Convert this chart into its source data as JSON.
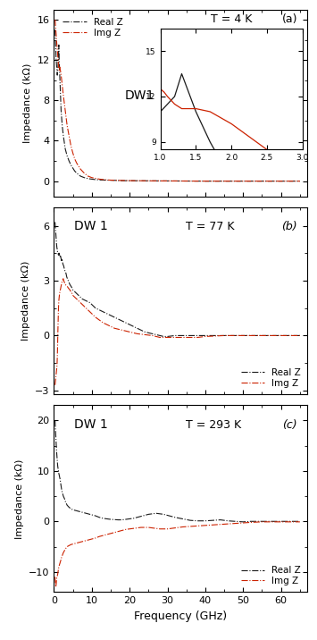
{
  "panel_a": {
    "title": "T = 4 K",
    "label": "DW1",
    "panel_letter": "(a)",
    "ylim": [
      -1.5,
      17
    ],
    "yticks": [
      0,
      4,
      8,
      12,
      16
    ],
    "xlim": [
      0,
      67
    ],
    "ylabel": "Impedance (kΩ)",
    "real_z_freq": [
      0.3,
      0.35,
      0.4,
      0.45,
      0.5,
      0.55,
      0.6,
      0.65,
      0.7,
      0.75,
      0.8,
      0.85,
      0.9,
      0.95,
      1.0,
      1.05,
      1.1,
      1.15,
      1.2,
      1.25,
      1.3,
      1.35,
      1.4,
      1.45,
      1.5,
      1.55,
      1.6,
      1.7,
      1.8,
      1.9,
      2.0,
      2.2,
      2.5,
      3.0,
      3.5,
      4.0,
      4.5,
      5.0,
      5.5,
      6.0,
      7.0,
      8.0,
      9.0,
      10.0,
      11.0,
      12.0,
      14.0,
      16.0,
      18.0,
      20.0,
      25.0,
      30.0,
      35.0,
      40.0,
      45.0,
      50.0,
      55.0,
      60.0,
      65.0
    ],
    "real_z_vals": [
      15.0,
      14.5,
      14.0,
      13.5,
      13.0,
      12.5,
      12.0,
      11.8,
      11.5,
      11.2,
      11.0,
      10.8,
      10.5,
      10.8,
      11.0,
      11.2,
      11.5,
      11.8,
      12.0,
      12.8,
      13.5,
      12.5,
      12.0,
      11.5,
      11.0,
      10.5,
      10.0,
      9.0,
      8.0,
      7.0,
      6.5,
      5.5,
      4.5,
      3.2,
      2.5,
      2.0,
      1.6,
      1.3,
      1.0,
      0.8,
      0.5,
      0.35,
      0.25,
      0.2,
      0.15,
      0.12,
      0.1,
      0.08,
      0.05,
      0.04,
      0.03,
      0.02,
      0.01,
      0.0,
      0.0,
      0.0,
      0.0,
      0.0,
      0.0
    ],
    "img_z_freq": [
      0.3,
      0.35,
      0.4,
      0.45,
      0.5,
      0.55,
      0.6,
      0.65,
      0.7,
      0.75,
      0.8,
      0.85,
      0.9,
      0.95,
      1.0,
      1.05,
      1.1,
      1.15,
      1.2,
      1.25,
      1.3,
      1.35,
      1.4,
      1.45,
      1.5,
      1.55,
      1.6,
      1.7,
      1.8,
      1.9,
      2.0,
      2.2,
      2.5,
      3.0,
      3.5,
      4.0,
      4.5,
      5.0,
      5.5,
      6.0,
      7.0,
      8.0,
      9.0,
      10.0,
      12.0,
      14.0,
      16.0,
      20.0,
      25.0,
      30.0,
      35.0,
      40.0,
      45.0,
      50.0,
      55.0,
      60.0,
      65.0
    ],
    "img_z_vals": [
      16.0,
      15.8,
      15.5,
      15.2,
      15.0,
      14.8,
      14.5,
      14.2,
      14.0,
      13.7,
      13.5,
      13.3,
      13.0,
      12.8,
      12.5,
      12.3,
      12.0,
      11.8,
      11.5,
      11.3,
      11.2,
      11.1,
      11.0,
      11.1,
      11.2,
      11.3,
      11.2,
      11.0,
      10.8,
      10.5,
      10.2,
      9.5,
      8.5,
      7.0,
      5.5,
      4.5,
      3.5,
      2.8,
      2.2,
      1.8,
      1.2,
      0.8,
      0.5,
      0.35,
      0.2,
      0.12,
      0.08,
      0.05,
      0.03,
      0.02,
      0.01,
      0.0,
      0.0,
      0.0,
      0.0,
      0.0,
      0.0
    ],
    "inset": {
      "xlim": [
        1.0,
        3.0
      ],
      "ylim": [
        8.5,
        16.5
      ],
      "yticks": [
        9,
        12,
        15
      ],
      "xticks": [
        1.0,
        1.5,
        2.0,
        2.5,
        3.0
      ],
      "real_z_freq": [
        1.0,
        1.2,
        1.3,
        1.5,
        1.7,
        2.0,
        2.5,
        3.0
      ],
      "real_z_vals": [
        11.0,
        12.0,
        13.5,
        11.0,
        9.0,
        6.5,
        4.5,
        3.2
      ],
      "img_z_freq": [
        1.0,
        1.05,
        1.1,
        1.2,
        1.3,
        1.5,
        1.7,
        2.0,
        2.5,
        3.0
      ],
      "img_z_vals": [
        12.5,
        12.3,
        12.0,
        11.5,
        11.2,
        11.2,
        11.0,
        10.2,
        8.5,
        7.0
      ]
    }
  },
  "panel_b": {
    "title": "T = 77 K",
    "label": "DW 1",
    "panel_letter": "(b)",
    "ylim": [
      -3.2,
      7.0
    ],
    "yticks": [
      -3,
      0,
      3,
      6
    ],
    "xlim": [
      0,
      67
    ],
    "ylabel": "Impedance (kΩ)",
    "real_z_freq": [
      0.3,
      0.4,
      0.5,
      0.6,
      0.7,
      0.8,
      0.9,
      1.0,
      1.1,
      1.2,
      1.3,
      1.4,
      1.5,
      1.6,
      1.7,
      1.8,
      1.9,
      2.0,
      2.1,
      2.2,
      2.3,
      2.4,
      2.5,
      2.6,
      2.7,
      2.8,
      3.0,
      3.2,
      3.4,
      3.6,
      3.8,
      4.0,
      4.2,
      4.5,
      4.8,
      5.0,
      5.5,
      6.0,
      6.5,
      7.0,
      7.5,
      8.0,
      8.5,
      9.0,
      9.5,
      10.0,
      10.5,
      11.0,
      12.0,
      13.0,
      14.0,
      15.0,
      16.0,
      17.0,
      18.0,
      19.0,
      20.0,
      21.0,
      22.0,
      23.0,
      24.0,
      25.0,
      26.0,
      27.0,
      28.0,
      29.0,
      30.0,
      32.0,
      34.0,
      36.0,
      38.0,
      40.0,
      42.0,
      45.0,
      48.0,
      50.0,
      55.0,
      60.0,
      65.0
    ],
    "real_z_vals": [
      6.2,
      5.9,
      5.6,
      5.3,
      5.0,
      4.8,
      4.7,
      4.5,
      4.5,
      4.4,
      4.4,
      4.5,
      4.4,
      4.3,
      4.4,
      4.3,
      4.2,
      4.1,
      4.2,
      4.1,
      4.0,
      3.9,
      3.85,
      3.8,
      3.7,
      3.6,
      3.5,
      3.4,
      3.2,
      3.1,
      3.0,
      2.9,
      2.8,
      2.7,
      2.6,
      2.5,
      2.4,
      2.3,
      2.2,
      2.1,
      2.0,
      1.95,
      1.9,
      1.85,
      1.8,
      1.7,
      1.6,
      1.5,
      1.4,
      1.3,
      1.2,
      1.1,
      1.0,
      0.9,
      0.8,
      0.7,
      0.6,
      0.5,
      0.4,
      0.3,
      0.2,
      0.15,
      0.1,
      0.05,
      0.0,
      -0.05,
      -0.05,
      0.0,
      0.0,
      0.0,
      0.0,
      0.0,
      0.0,
      0.0,
      0.0,
      0.0,
      0.0,
      0.0,
      0.0
    ],
    "img_z_freq": [
      0.3,
      0.35,
      0.4,
      0.45,
      0.5,
      0.55,
      0.6,
      0.65,
      0.7,
      0.75,
      0.8,
      0.85,
      0.9,
      0.95,
      1.0,
      1.05,
      1.1,
      1.15,
      1.2,
      1.25,
      1.3,
      1.4,
      1.5,
      1.6,
      1.7,
      1.8,
      1.9,
      2.0,
      2.1,
      2.2,
      2.3,
      2.4,
      2.5,
      2.6,
      2.7,
      2.8,
      3.0,
      3.2,
      3.5,
      3.8,
      4.0,
      4.2,
      4.5,
      4.8,
      5.0,
      5.5,
      6.0,
      6.5,
      7.0,
      7.5,
      8.0,
      8.5,
      9.0,
      9.5,
      10.0,
      11.0,
      12.0,
      13.0,
      14.0,
      15.0,
      16.0,
      18.0,
      20.0,
      22.0,
      24.0,
      26.0,
      28.0,
      30.0,
      32.0,
      35.0,
      38.0,
      40.0,
      45.0,
      50.0,
      55.0,
      60.0,
      65.0
    ],
    "img_z_vals": [
      -2.7,
      -2.6,
      -2.5,
      -2.4,
      -2.3,
      -2.2,
      -2.1,
      -2.0,
      -1.9,
      -1.8,
      -1.7,
      -1.5,
      -1.2,
      -0.8,
      -0.3,
      0.2,
      0.6,
      1.0,
      1.4,
      1.7,
      1.9,
      2.1,
      2.3,
      2.4,
      2.5,
      2.6,
      2.7,
      2.8,
      2.9,
      2.95,
      3.0,
      3.1,
      3.1,
      3.0,
      2.95,
      2.9,
      2.8,
      2.75,
      2.7,
      2.6,
      2.55,
      2.5,
      2.4,
      2.3,
      2.2,
      2.1,
      2.0,
      1.9,
      1.8,
      1.7,
      1.6,
      1.5,
      1.4,
      1.3,
      1.2,
      1.0,
      0.85,
      0.7,
      0.6,
      0.5,
      0.4,
      0.3,
      0.2,
      0.1,
      0.05,
      0.0,
      -0.1,
      -0.1,
      -0.1,
      -0.1,
      -0.1,
      -0.05,
      0.0,
      0.0,
      0.0,
      0.0,
      0.0
    ]
  },
  "panel_c": {
    "title": "T = 293 K",
    "label": "DW 1",
    "panel_letter": "(c)",
    "ylim": [
      -14,
      23
    ],
    "yticks": [
      -10,
      0,
      10,
      20
    ],
    "xlim": [
      0,
      67
    ],
    "ylabel": "Impedance (kΩ)",
    "xlabel": "Frequency (GHz)",
    "real_z_freq": [
      0.3,
      0.4,
      0.5,
      0.6,
      0.7,
      0.8,
      0.9,
      1.0,
      1.1,
      1.2,
      1.3,
      1.4,
      1.5,
      1.6,
      1.7,
      1.8,
      1.9,
      2.0,
      2.2,
      2.5,
      2.8,
      3.0,
      3.5,
      4.0,
      4.5,
      5.0,
      5.5,
      6.0,
      6.5,
      7.0,
      7.5,
      8.0,
      8.5,
      9.0,
      9.5,
      10.0,
      10.5,
      11.0,
      12.0,
      13.0,
      14.0,
      15.0,
      16.0,
      17.0,
      18.0,
      19.0,
      20.0,
      21.0,
      22.0,
      23.0,
      24.0,
      25.0,
      26.0,
      27.0,
      28.0,
      29.0,
      30.0,
      31.0,
      32.0,
      34.0,
      36.0,
      38.0,
      40.0,
      42.0,
      44.0,
      45.0,
      46.0,
      48.0,
      50.0,
      52.0,
      55.0,
      58.0,
      60.0,
      63.0,
      65.0
    ],
    "real_z_vals": [
      20.0,
      18.5,
      17.0,
      15.5,
      14.0,
      13.0,
      12.0,
      11.0,
      10.5,
      10.0,
      9.5,
      9.2,
      8.8,
      8.5,
      8.0,
      7.5,
      7.0,
      6.5,
      5.8,
      5.0,
      4.5,
      4.0,
      3.2,
      2.8,
      2.5,
      2.3,
      2.2,
      2.1,
      2.0,
      1.9,
      1.8,
      1.7,
      1.6,
      1.5,
      1.4,
      1.3,
      1.2,
      1.1,
      0.8,
      0.6,
      0.5,
      0.4,
      0.35,
      0.3,
      0.3,
      0.4,
      0.5,
      0.6,
      0.8,
      1.0,
      1.2,
      1.4,
      1.5,
      1.6,
      1.5,
      1.4,
      1.2,
      1.0,
      0.8,
      0.5,
      0.2,
      0.1,
      0.1,
      0.2,
      0.3,
      0.2,
      0.1,
      0.0,
      -0.1,
      0.0,
      0.0,
      0.0,
      0.0,
      0.0,
      0.0
    ],
    "img_z_freq": [
      0.3,
      0.4,
      0.5,
      0.6,
      0.7,
      0.8,
      0.9,
      1.0,
      1.1,
      1.2,
      1.3,
      1.4,
      1.5,
      1.6,
      1.7,
      1.8,
      1.9,
      2.0,
      2.2,
      2.5,
      2.8,
      3.0,
      3.5,
      4.0,
      4.5,
      5.0,
      5.5,
      6.0,
      6.5,
      7.0,
      7.5,
      8.0,
      8.5,
      9.0,
      9.5,
      10.0,
      10.5,
      11.0,
      12.0,
      13.0,
      14.0,
      15.0,
      16.0,
      17.0,
      18.0,
      19.0,
      20.0,
      21.0,
      22.0,
      23.0,
      24.0,
      25.0,
      26.0,
      27.0,
      28.0,
      29.0,
      30.0,
      31.0,
      32.0,
      33.0,
      34.0,
      36.0,
      38.0,
      40.0,
      42.0,
      44.0,
      46.0,
      48.0,
      50.0,
      52.0,
      55.0,
      58.0,
      60.0,
      63.0,
      65.0
    ],
    "img_z_vals": [
      -11.0,
      -12.0,
      -13.0,
      -12.5,
      -11.5,
      -11.0,
      -10.8,
      -10.5,
      -10.0,
      -9.5,
      -9.0,
      -8.8,
      -8.5,
      -8.3,
      -8.0,
      -7.8,
      -7.5,
      -7.2,
      -6.8,
      -6.2,
      -5.8,
      -5.5,
      -5.0,
      -4.8,
      -4.6,
      -4.5,
      -4.4,
      -4.3,
      -4.2,
      -4.1,
      -4.0,
      -3.9,
      -3.8,
      -3.7,
      -3.6,
      -3.5,
      -3.4,
      -3.3,
      -3.0,
      -2.8,
      -2.6,
      -2.4,
      -2.2,
      -2.0,
      -1.8,
      -1.6,
      -1.5,
      -1.4,
      -1.3,
      -1.2,
      -1.2,
      -1.2,
      -1.3,
      -1.4,
      -1.5,
      -1.5,
      -1.5,
      -1.4,
      -1.3,
      -1.2,
      -1.1,
      -1.0,
      -0.9,
      -0.8,
      -0.7,
      -0.6,
      -0.5,
      -0.4,
      -0.3,
      -0.2,
      -0.1,
      -0.1,
      -0.1,
      -0.1,
      -0.1
    ]
  },
  "real_z_color": "#1a1a1a",
  "img_z_color": "#cc2200",
  "linewidth": 0.8
}
